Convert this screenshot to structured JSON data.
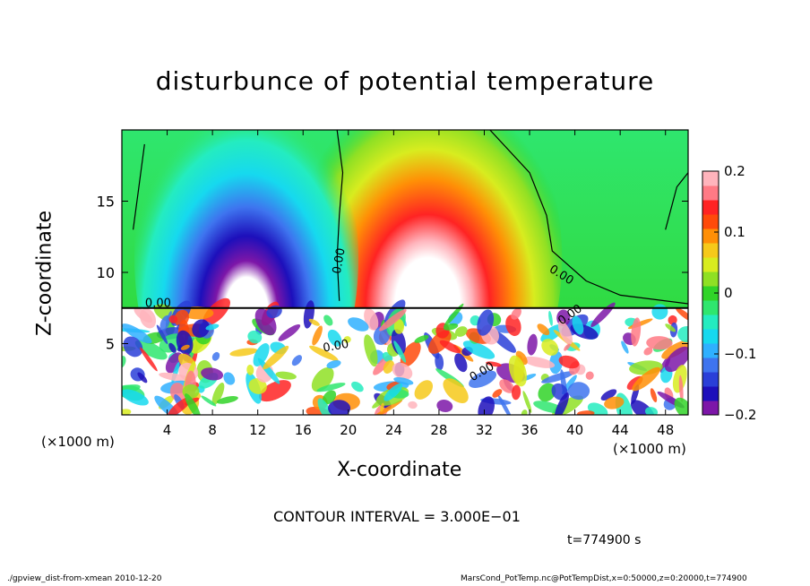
{
  "chart_data": {
    "type": "heatmap",
    "title": "disturbunce of potential temperature",
    "xlabel": "X-coordinate",
    "ylabel": "Z-coordinate",
    "x_unit_left": "(×1000 m)",
    "x_unit_right": "(×1000 m)",
    "xlim": [
      0,
      50
    ],
    "ylim": [
      0,
      20
    ],
    "x_ticks": [
      4,
      8,
      12,
      16,
      20,
      24,
      28,
      32,
      36,
      40,
      44,
      48
    ],
    "y_ticks": [
      5,
      10,
      15
    ],
    "colorbar": {
      "min": -0.2,
      "max": 0.2,
      "ticks": [
        {
          "value": 0.2,
          "label": "0.2"
        },
        {
          "value": 0.1,
          "label": "0.1"
        },
        {
          "value": 0.0,
          "label": "0"
        },
        {
          "value": -0.1,
          "label": "−0.1"
        },
        {
          "value": -0.2,
          "label": "−0.2"
        }
      ],
      "colors": [
        "#7d16a8",
        "#1d0fbb",
        "#2a3fd8",
        "#3e74ef",
        "#2fb0ff",
        "#16d9ef",
        "#24ecc0",
        "#2fe66e",
        "#31d428",
        "#8fe024",
        "#d8ec1f",
        "#f6c91a",
        "#ff8f06",
        "#ff4a0a",
        "#ff2323",
        "#ff7a85",
        "#ffb4bc"
      ]
    },
    "contour_labels": [
      {
        "text": "0.00",
        "x": 19.2,
        "z": 10.8,
        "rotate": -80
      },
      {
        "text": "0.00",
        "x": 38.8,
        "z": 9.8,
        "rotate": 32
      },
      {
        "text": "0.00",
        "x": 3.2,
        "z": 7.8,
        "rotate": 0
      },
      {
        "text": "0.00",
        "x": 18.9,
        "z": 4.8,
        "rotate": -10
      },
      {
        "text": "0.00",
        "x": 31.8,
        "z": 3.0,
        "rotate": -30
      },
      {
        "text": "0.00",
        "x": 39.6,
        "z": 7.0,
        "rotate": -35
      }
    ],
    "features": [
      {
        "kind": "warm_anomaly",
        "x_center": 27,
        "z_center": 11,
        "peak": 0.2
      },
      {
        "kind": "cold_anomaly",
        "x_center": 11,
        "z_center": 11,
        "peak": -0.2
      },
      {
        "kind": "turbulent_layer",
        "z_top": 7.5
      }
    ]
  },
  "annotations": {
    "contour_interval": "CONTOUR INTERVAL = 3.000E−01",
    "time": "t=774900  s",
    "footer_left": "./gpview_dist-from-xmean  2010-12-20",
    "footer_right": "MarsCond_PotTemp.nc@PotTempDist,x=0:50000,z=0:20000,t=774900"
  }
}
